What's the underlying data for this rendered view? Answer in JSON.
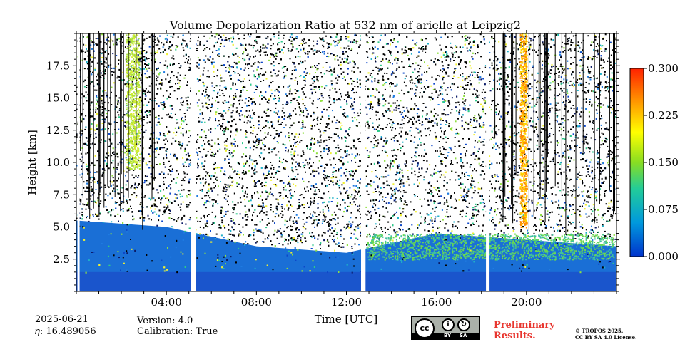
{
  "chart_data": {
    "type": "heatmap",
    "title": "Volume Depolarization Ratio at 532 nm of arielle at Leipzig2",
    "xlabel": "Time [UTC]",
    "ylabel": "Height [km]",
    "x_range_hours": [
      0,
      24
    ],
    "x_ticks": [
      {
        "hour": 4,
        "label": "04:00"
      },
      {
        "hour": 8,
        "label": "08:00"
      },
      {
        "hour": 12,
        "label": "12:00"
      },
      {
        "hour": 16,
        "label": "16:00"
      },
      {
        "hour": 20,
        "label": "20:00"
      }
    ],
    "ylim": [
      0,
      20
    ],
    "y_ticks": [
      {
        "value": 2.5,
        "label": "2.5"
      },
      {
        "value": 5.0,
        "label": "5.0"
      },
      {
        "value": 7.5,
        "label": "7.5"
      },
      {
        "value": 10.0,
        "label": "10.0"
      },
      {
        "value": 12.5,
        "label": "12.5"
      },
      {
        "value": 15.0,
        "label": "15.0"
      },
      {
        "value": 17.5,
        "label": "17.5"
      }
    ],
    "colorbar": {
      "min": 0.0,
      "max": 0.3,
      "ticks": [
        {
          "value": 0.0,
          "label": "0.000"
        },
        {
          "value": 0.075,
          "label": "0.075"
        },
        {
          "value": 0.15,
          "label": "0.150"
        },
        {
          "value": 0.225,
          "label": "0.225"
        },
        {
          "value": 0.3,
          "label": "0.300"
        }
      ],
      "colors": [
        "#0033cc",
        "#0099dd",
        "#22cc99",
        "#88dd22",
        "#ffff00",
        "#ff9900",
        "#ff2200"
      ]
    },
    "data_gaps_hours": [
      [
        5.1,
        5.3
      ],
      [
        12.65,
        12.85
      ],
      [
        18.2,
        18.35
      ]
    ],
    "aerosol_layer_top_km": [
      {
        "hour": 0,
        "km": 5.5
      },
      {
        "hour": 4,
        "km": 5.0
      },
      {
        "hour": 8,
        "km": 3.5
      },
      {
        "hour": 12,
        "km": 3.0
      },
      {
        "hour": 16,
        "km": 4.5
      },
      {
        "hour": 20,
        "km": 4.0
      },
      {
        "hour": 24,
        "km": 3.5
      }
    ],
    "high_depol_columns_hours": [
      [
        2.2,
        2.8
      ],
      [
        19.7,
        20.0
      ]
    ]
  },
  "footer": {
    "date": "2025-06-21",
    "eta": "𝜂: 16.489056",
    "version": "Version: 4.0",
    "calibration": "Calibration: True",
    "preliminary_line1": "Preliminary",
    "preliminary_line2": "Results.",
    "copyright_line1": "© TROPOS 2025.",
    "copyright_line2": "CC BY SA 4.0 License.",
    "license_badge": {
      "cc": "cc",
      "by": "BY",
      "sa": "SA"
    }
  }
}
